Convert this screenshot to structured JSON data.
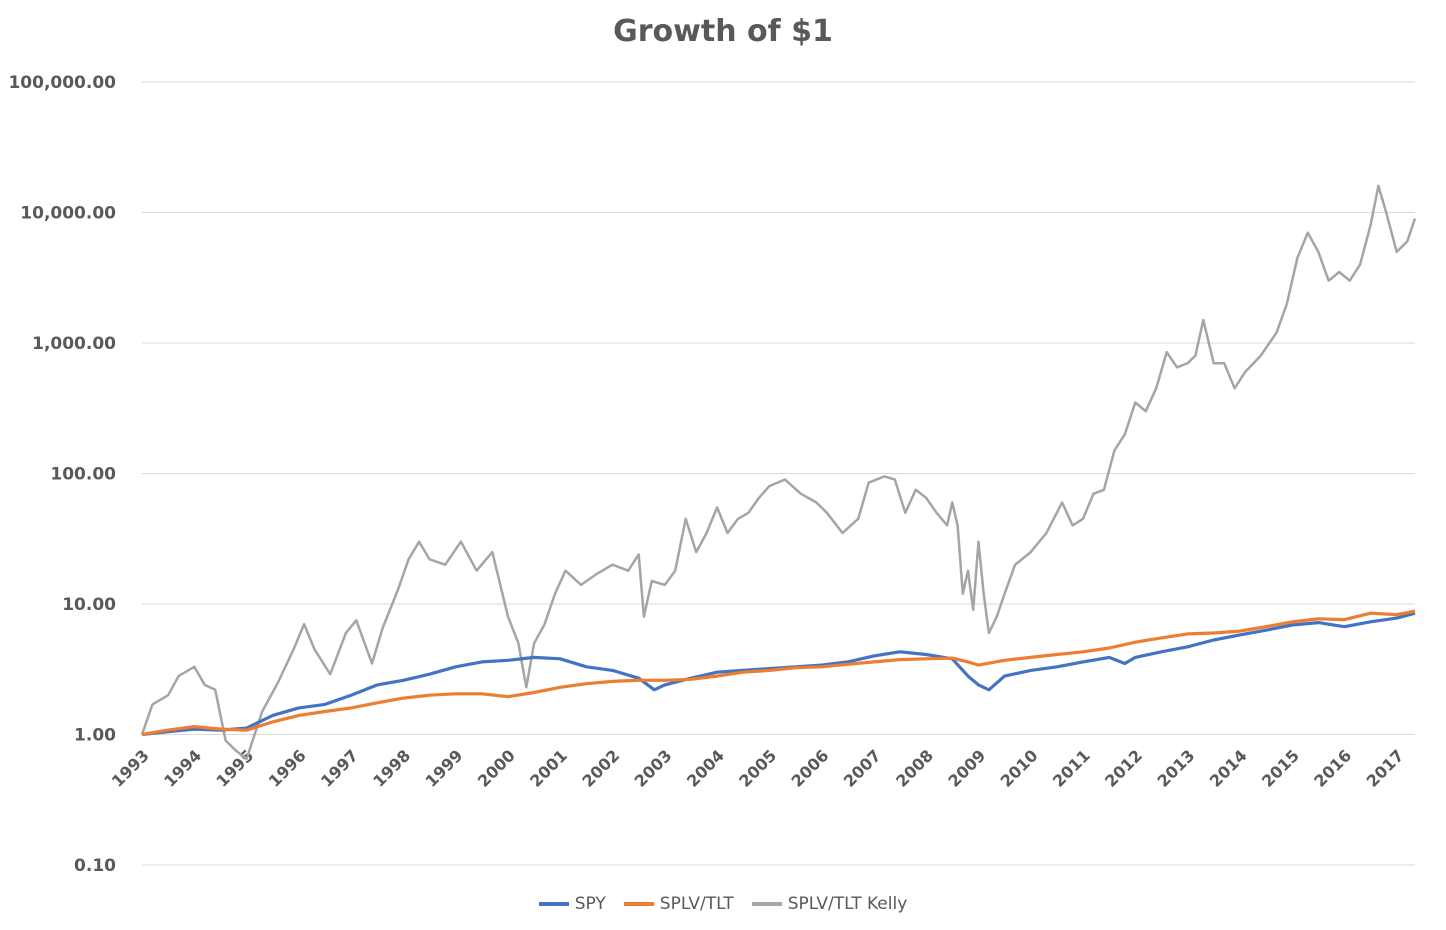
{
  "chart_data": {
    "type": "line",
    "title": "Growth of $1",
    "xlabel": "",
    "ylabel": "",
    "yscale": "log",
    "ylim": [
      0.1,
      100000
    ],
    "y_ticks": [
      "100,000.00",
      "10,000.00",
      "1,000.00",
      "100.00",
      "10.00",
      "1.00",
      "0.10"
    ],
    "x_ticks": [
      "1993",
      "1994",
      "1995",
      "1996",
      "1997",
      "1998",
      "1999",
      "2000",
      "2001",
      "2002",
      "2003",
      "2004",
      "2005",
      "2006",
      "2007",
      "2008",
      "2009",
      "2010",
      "2011",
      "2012",
      "2013",
      "2014",
      "2015",
      "2016",
      "2017"
    ],
    "xlim": [
      1993.0,
      2017.35
    ],
    "grid": true,
    "legend_position": "bottom",
    "series": [
      {
        "name": "SPY",
        "color": "#4472C4",
        "x": [
          1993.0,
          1993.5,
          1994.0,
          1994.5,
          1995.0,
          1995.5,
          1996.0,
          1996.5,
          1997.0,
          1997.5,
          1998.0,
          1998.5,
          1999.0,
          1999.5,
          2000.0,
          2000.5,
          2001.0,
          2001.5,
          2002.0,
          2002.5,
          2002.8,
          2003.0,
          2003.5,
          2004.0,
          2004.5,
          2005.0,
          2005.5,
          2006.0,
          2006.5,
          2007.0,
          2007.5,
          2008.0,
          2008.5,
          2008.8,
          2009.0,
          2009.2,
          2009.5,
          2010.0,
          2010.5,
          2011.0,
          2011.5,
          2011.8,
          2012.0,
          2012.5,
          2013.0,
          2013.5,
          2014.0,
          2014.5,
          2015.0,
          2015.5,
          2016.0,
          2016.5,
          2017.0,
          2017.35
        ],
        "y": [
          1.0,
          1.05,
          1.1,
          1.08,
          1.12,
          1.4,
          1.6,
          1.7,
          2.0,
          2.4,
          2.6,
          2.9,
          3.3,
          3.6,
          3.7,
          3.9,
          3.8,
          3.3,
          3.1,
          2.7,
          2.2,
          2.4,
          2.7,
          3.0,
          3.1,
          3.2,
          3.3,
          3.4,
          3.6,
          4.0,
          4.3,
          4.1,
          3.8,
          2.8,
          2.4,
          2.2,
          2.8,
          3.1,
          3.3,
          3.6,
          3.9,
          3.5,
          3.9,
          4.3,
          4.7,
          5.3,
          5.8,
          6.3,
          6.9,
          7.2,
          6.7,
          7.3,
          7.8,
          8.5
        ]
      },
      {
        "name": "SPLV/TLT",
        "color": "#ED7D31",
        "x": [
          1993.0,
          1993.5,
          1994.0,
          1994.5,
          1995.0,
          1995.5,
          1996.0,
          1996.5,
          1997.0,
          1997.5,
          1998.0,
          1998.5,
          1999.0,
          1999.5,
          2000.0,
          2000.5,
          2001.0,
          2001.5,
          2002.0,
          2002.5,
          2003.0,
          2003.5,
          2004.0,
          2004.5,
          2005.0,
          2005.5,
          2006.0,
          2006.5,
          2007.0,
          2007.5,
          2008.0,
          2008.5,
          2008.8,
          2009.0,
          2009.5,
          2010.0,
          2010.5,
          2011.0,
          2011.5,
          2012.0,
          2012.5,
          2013.0,
          2013.5,
          2014.0,
          2014.5,
          2015.0,
          2015.5,
          2016.0,
          2016.5,
          2017.0,
          2017.35
        ],
        "y": [
          1.0,
          1.08,
          1.15,
          1.1,
          1.08,
          1.25,
          1.4,
          1.5,
          1.6,
          1.75,
          1.9,
          2.0,
          2.05,
          2.05,
          1.95,
          2.1,
          2.3,
          2.45,
          2.55,
          2.6,
          2.6,
          2.65,
          2.8,
          3.0,
          3.1,
          3.25,
          3.3,
          3.45,
          3.6,
          3.75,
          3.8,
          3.85,
          3.6,
          3.4,
          3.7,
          3.9,
          4.1,
          4.3,
          4.6,
          5.1,
          5.5,
          5.9,
          6.0,
          6.2,
          6.7,
          7.3,
          7.7,
          7.6,
          8.5,
          8.3,
          8.8
        ]
      },
      {
        "name": "SPLV/TLT Kelly",
        "color": "#A5A5A5",
        "x": [
          1993.0,
          1993.2,
          1993.5,
          1993.7,
          1994.0,
          1994.2,
          1994.4,
          1994.6,
          1994.8,
          1995.0,
          1995.3,
          1995.6,
          1995.9,
          1996.1,
          1996.3,
          1996.6,
          1996.9,
          1997.1,
          1997.4,
          1997.6,
          1997.9,
          1998.1,
          1998.3,
          1998.5,
          1998.8,
          1999.1,
          1999.4,
          1999.7,
          2000.0,
          2000.2,
          2000.35,
          2000.5,
          2000.7,
          2000.9,
          2001.1,
          2001.4,
          2001.7,
          2002.0,
          2002.3,
          2002.5,
          2002.6,
          2002.75,
          2003.0,
          2003.2,
          2003.4,
          2003.6,
          2003.8,
          2004.0,
          2004.2,
          2004.4,
          2004.6,
          2004.8,
          2005.0,
          2005.3,
          2005.6,
          2005.9,
          2006.1,
          2006.4,
          2006.7,
          2006.9,
          2007.2,
          2007.4,
          2007.6,
          2007.8,
          2008.0,
          2008.2,
          2008.4,
          2008.5,
          2008.6,
          2008.7,
          2008.8,
          2008.9,
          2009.0,
          2009.1,
          2009.2,
          2009.35,
          2009.5,
          2009.7,
          2010.0,
          2010.3,
          2010.6,
          2010.8,
          2011.0,
          2011.2,
          2011.4,
          2011.6,
          2011.8,
          2012.0,
          2012.2,
          2012.4,
          2012.6,
          2012.8,
          2013.0,
          2013.15,
          2013.3,
          2013.5,
          2013.7,
          2013.9,
          2014.1,
          2014.4,
          2014.7,
          2014.9,
          2015.1,
          2015.3,
          2015.5,
          2015.7,
          2015.9,
          2016.1,
          2016.3,
          2016.5,
          2016.65,
          2016.8,
          2017.0,
          2017.2,
          2017.35
        ],
        "y": [
          1.0,
          1.7,
          2.0,
          2.8,
          3.3,
          2.4,
          2.2,
          0.9,
          0.75,
          0.65,
          1.5,
          2.5,
          4.5,
          7.0,
          4.5,
          2.9,
          6.0,
          7.5,
          3.5,
          6.5,
          13.0,
          22.0,
          30.0,
          22.0,
          20.0,
          30.0,
          18.0,
          25.0,
          8.0,
          5.0,
          2.3,
          5.0,
          7.0,
          12.0,
          18.0,
          14.0,
          17.0,
          20.0,
          18.0,
          24.0,
          8.0,
          15.0,
          14.0,
          18.0,
          45.0,
          25.0,
          35.0,
          55.0,
          35.0,
          45.0,
          50.0,
          65.0,
          80.0,
          90.0,
          70.0,
          60.0,
          50.0,
          35.0,
          45.0,
          85.0,
          95.0,
          90.0,
          50.0,
          75.0,
          65.0,
          50.0,
          40.0,
          60.0,
          40.0,
          12.0,
          18.0,
          9.0,
          30.0,
          12.0,
          6.0,
          8.0,
          12.0,
          20.0,
          25.0,
          35.0,
          60.0,
          40.0,
          45.0,
          70.0,
          75.0,
          150.0,
          200.0,
          350.0,
          300.0,
          450.0,
          850.0,
          650.0,
          700.0,
          800.0,
          1500.0,
          700.0,
          700.0,
          450.0,
          600.0,
          800.0,
          1200.0,
          2000.0,
          4500.0,
          7000.0,
          5000.0,
          3000.0,
          3500.0,
          3000.0,
          4000.0,
          8000.0,
          16000.0,
          10000.0,
          5000.0,
          6000.0,
          9000.0
        ]
      }
    ]
  }
}
